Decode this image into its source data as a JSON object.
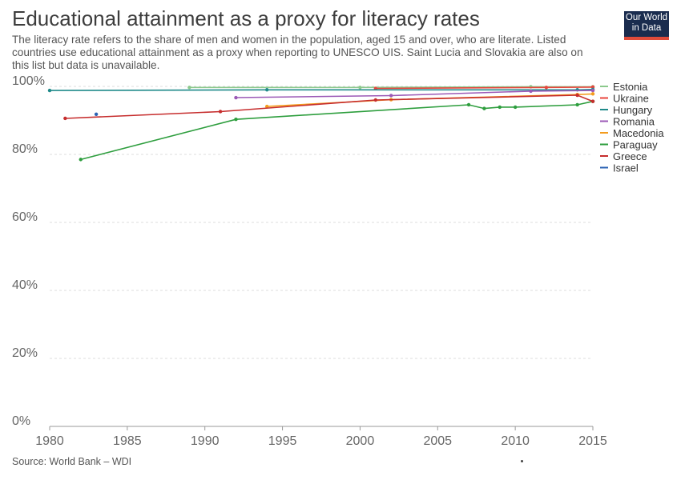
{
  "title": "Educational attainment as a proxy for literacy rates",
  "subtitle": "The literacy rate refers to the share of men and women in the population, aged 15 and over, who are literate. Listed countries use educational attainment as a proxy when reporting to UNESCO UIS. Saint Lucia and Slovakia are also on this list but data is unavailable.",
  "logo": {
    "line1": "Our World",
    "line2": "in Data"
  },
  "source": "Source: World Bank – WDI",
  "chart_data": {
    "type": "line",
    "title": "Educational attainment as a proxy for literacy rates",
    "xlim": [
      1980,
      2015
    ],
    "ylim": [
      0,
      100
    ],
    "x_ticks": [
      "1980",
      "1985",
      "1990",
      "1995",
      "2000",
      "2005",
      "2010",
      "2015"
    ],
    "x_tick_values": [
      1980,
      1985,
      1990,
      1995,
      2000,
      2005,
      2010,
      2015
    ],
    "y_ticks": [
      "0%",
      "20%",
      "40%",
      "60%",
      "80%",
      "100%"
    ],
    "y_tick_values": [
      0,
      20,
      40,
      60,
      80,
      100
    ],
    "grid": "horizontal dashed",
    "legend_position": "right",
    "series": [
      {
        "name": "Estonia",
        "color": "#8bc98c",
        "points": [
          [
            1989,
            99.7
          ],
          [
            2000,
            99.7
          ],
          [
            2011,
            99.9
          ],
          [
            2015,
            99.9
          ]
        ]
      },
      {
        "name": "Ukraine",
        "color": "#e8453c",
        "points": [
          [
            2001,
            99.4
          ],
          [
            2012,
            99.7
          ],
          [
            2015,
            99.8
          ]
        ]
      },
      {
        "name": "Hungary",
        "color": "#1f8a8a",
        "points": [
          [
            1980,
            98.8
          ],
          [
            1994,
            99.0
          ],
          [
            2014,
            99.0
          ],
          [
            2015,
            99.1
          ]
        ]
      },
      {
        "name": "Romania",
        "color": "#9b59b6",
        "points": [
          [
            1992,
            96.7
          ],
          [
            2002,
            97.3
          ],
          [
            2011,
            98.6
          ],
          [
            2015,
            98.8
          ]
        ]
      },
      {
        "name": "Macedonia",
        "color": "#f39c1f",
        "points": [
          [
            1994,
            94.1
          ],
          [
            2002,
            96.1
          ],
          [
            2014,
            97.6
          ],
          [
            2015,
            97.8
          ]
        ]
      },
      {
        "name": "Paraguay",
        "color": "#2e9e3e",
        "points": [
          [
            1982,
            78.5
          ],
          [
            1992,
            90.3
          ],
          [
            2007,
            94.6
          ],
          [
            2008,
            93.5
          ],
          [
            2009,
            93.9
          ],
          [
            2010,
            93.9
          ],
          [
            2014,
            94.6
          ],
          [
            2015,
            95.6
          ]
        ]
      },
      {
        "name": "Greece",
        "color": "#c62d2d",
        "points": [
          [
            1981,
            90.6
          ],
          [
            1991,
            92.6
          ],
          [
            2001,
            96.0
          ],
          [
            2014,
            97.4
          ],
          [
            2015,
            95.6
          ]
        ]
      },
      {
        "name": "Israel",
        "color": "#2b62b3",
        "points": [
          [
            1983,
            91.8
          ]
        ]
      }
    ]
  }
}
